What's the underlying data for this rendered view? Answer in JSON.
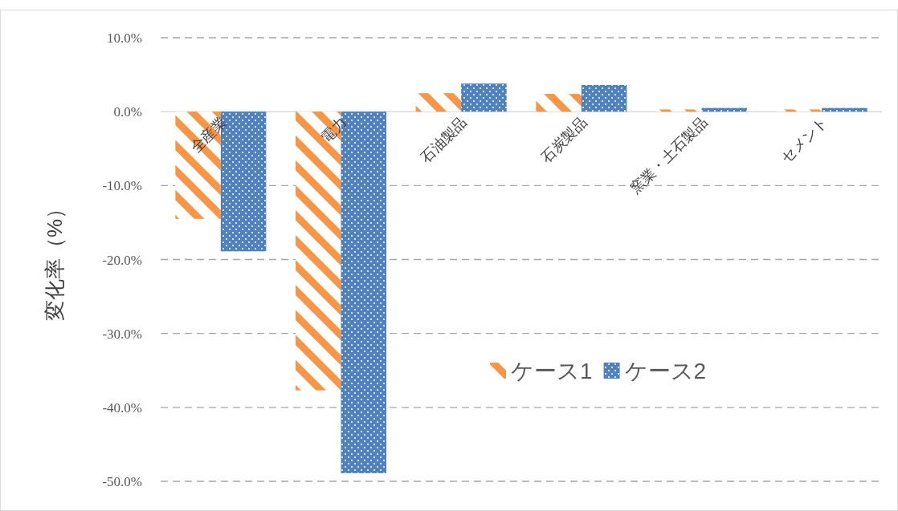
{
  "chart_data": {
    "type": "bar",
    "ylabel": "変化率（%）",
    "categories": [
      "全産業",
      "電力",
      "石油製品",
      "石炭製品",
      "窯業・土石製品",
      "セメント"
    ],
    "series": [
      {
        "name": "ケース1",
        "color": "#f79646",
        "values": [
          -14.5,
          -37.7,
          2.5,
          2.4,
          0.3,
          0.3
        ]
      },
      {
        "name": "ケース2",
        "color": "#4f81bd",
        "values": [
          -18.9,
          -48.9,
          3.8,
          3.6,
          0.5,
          0.5
        ]
      }
    ],
    "ylim": [
      -50,
      10
    ],
    "yticks": [
      {
        "value": 10,
        "label": "10.0%"
      },
      {
        "value": 0,
        "label": "0.0%"
      },
      {
        "value": -10,
        "label": "-10.0%"
      },
      {
        "value": -20,
        "label": "-20.0%"
      },
      {
        "value": -30,
        "label": "-30.0%"
      },
      {
        "value": -40,
        "label": "-40.0%"
      },
      {
        "value": -50,
        "label": "-50.0%"
      }
    ],
    "grid": "y",
    "legend": "bottom"
  }
}
